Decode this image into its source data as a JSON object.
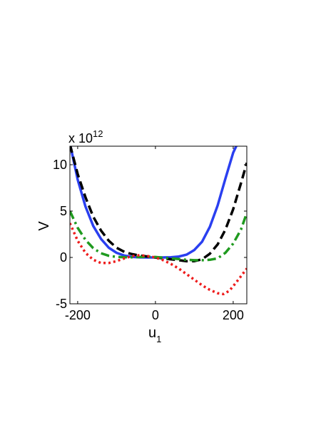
{
  "chart_data": {
    "type": "line",
    "xlabel": "u",
    "xlabel_subscript": "1",
    "ylabel": "V",
    "y_exponent_prefix": "x 10",
    "y_exponent_power": "12",
    "xlim": [
      -220,
      235
    ],
    "ylim": [
      -5,
      12
    ],
    "xticks": [
      -200,
      0,
      200
    ],
    "xtick_labels": [
      "-200",
      "0",
      "200"
    ],
    "yticks": [
      -5,
      0,
      5,
      10
    ],
    "ytick_labels": [
      "-5",
      "0",
      "5",
      "10"
    ],
    "grid": false,
    "legend": null,
    "series": [
      {
        "color": "#2a3ff0",
        "style": "solid",
        "x": [
          -220,
          -200,
          -180,
          -160,
          -140,
          -120,
          -100,
          -80,
          -60,
          -40,
          -20,
          0,
          20,
          40,
          60,
          80,
          100,
          120,
          140,
          160,
          180,
          200,
          210
        ],
        "y": [
          12.3,
          8.4,
          5.5,
          3.4,
          2.0,
          1.05,
          0.5,
          0.2,
          0.06,
          0.01,
          0.0,
          0.0,
          0.0,
          0.02,
          0.1,
          0.3,
          0.8,
          1.7,
          3.3,
          5.6,
          8.5,
          11.3,
          12.2
        ]
      },
      {
        "color": "#000000",
        "style": "dashed",
        "x": [
          -220,
          -200,
          -180,
          -160,
          -140,
          -120,
          -100,
          -80,
          -60,
          -40,
          -20,
          0,
          20,
          40,
          60,
          80,
          100,
          120,
          140,
          160,
          180,
          200,
          220,
          235
        ],
        "y": [
          12.2,
          9.0,
          6.5,
          4.4,
          2.9,
          1.8,
          1.05,
          0.6,
          0.35,
          0.2,
          0.1,
          0.0,
          -0.1,
          -0.2,
          -0.3,
          -0.4,
          -0.4,
          -0.2,
          0.4,
          1.4,
          3.0,
          5.2,
          8.0,
          10.2
        ]
      },
      {
        "color": "#1f9a1f",
        "style": "dash-dot",
        "x": [
          -220,
          -200,
          -180,
          -160,
          -140,
          -120,
          -100,
          -80,
          -60,
          -40,
          -20,
          0,
          20,
          40,
          60,
          80,
          100,
          120,
          140,
          160,
          180,
          200,
          220,
          235
        ],
        "y": [
          5.0,
          3.2,
          1.9,
          1.0,
          0.45,
          0.18,
          0.06,
          0.02,
          0.02,
          0.05,
          0.08,
          0.05,
          -0.02,
          -0.1,
          -0.18,
          -0.25,
          -0.3,
          -0.3,
          -0.25,
          -0.1,
          0.5,
          1.5,
          3.0,
          4.8
        ]
      },
      {
        "color": "#ee1c1c",
        "style": "dotted",
        "x": [
          -220,
          -200,
          -180,
          -160,
          -140,
          -120,
          -100,
          -80,
          -60,
          -40,
          -20,
          0,
          20,
          40,
          60,
          80,
          100,
          120,
          140,
          160,
          175,
          190,
          200,
          215,
          235
        ],
        "y": [
          3.7,
          1.8,
          0.5,
          -0.25,
          -0.6,
          -0.6,
          -0.4,
          -0.1,
          0.15,
          0.25,
          0.15,
          0.0,
          -0.3,
          -0.7,
          -1.2,
          -1.8,
          -2.4,
          -3.0,
          -3.5,
          -3.85,
          -3.95,
          -3.6,
          -3.1,
          -2.3,
          -1.2
        ]
      }
    ]
  }
}
